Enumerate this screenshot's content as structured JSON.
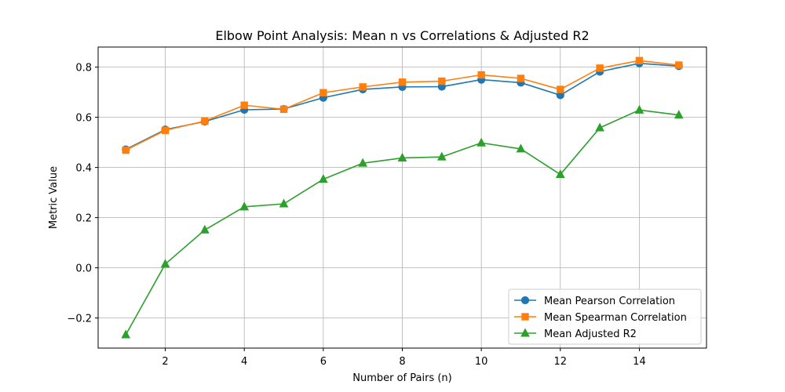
{
  "chart_data": {
    "type": "line",
    "title": "Elbow Point Analysis: Mean n vs Correlations & Adjusted R2",
    "xlabel": "Number of Pairs (n)",
    "ylabel": "Metric Value",
    "xlim": [
      0.3,
      15.7
    ],
    "ylim": [
      -0.32,
      0.88
    ],
    "x_ticks": [
      2,
      4,
      6,
      8,
      10,
      12,
      14
    ],
    "x_tick_labels": [
      "2",
      "4",
      "6",
      "8",
      "10",
      "12",
      "14"
    ],
    "y_ticks": [
      -0.2,
      0.0,
      0.2,
      0.4,
      0.6,
      0.8
    ],
    "y_tick_labels": [
      "−0.2",
      "0.0",
      "0.2",
      "0.4",
      "0.6",
      "0.8"
    ],
    "grid": true,
    "legend_position": "lower-right",
    "x": [
      1,
      2,
      3,
      4,
      5,
      6,
      7,
      8,
      9,
      10,
      11,
      12,
      13,
      14,
      15
    ],
    "series": [
      {
        "name": "Mean Pearson Correlation",
        "color": "#1f77b4",
        "marker": "circle",
        "values": [
          0.472,
          0.551,
          0.583,
          0.63,
          0.633,
          0.678,
          0.711,
          0.721,
          0.722,
          0.75,
          0.738,
          0.688,
          0.782,
          0.815,
          0.804
        ]
      },
      {
        "name": "Mean Spearman Correlation",
        "color": "#ff7f0e",
        "marker": "square",
        "values": [
          0.469,
          0.548,
          0.585,
          0.648,
          0.632,
          0.698,
          0.721,
          0.74,
          0.744,
          0.769,
          0.755,
          0.711,
          0.796,
          0.826,
          0.808
        ]
      },
      {
        "name": "Mean Adjusted R2",
        "color": "#2ca02c",
        "marker": "triangle",
        "values": [
          -0.267,
          0.015,
          0.151,
          0.243,
          0.255,
          0.353,
          0.417,
          0.438,
          0.442,
          0.498,
          0.474,
          0.372,
          0.558,
          0.629,
          0.609
        ]
      }
    ]
  }
}
